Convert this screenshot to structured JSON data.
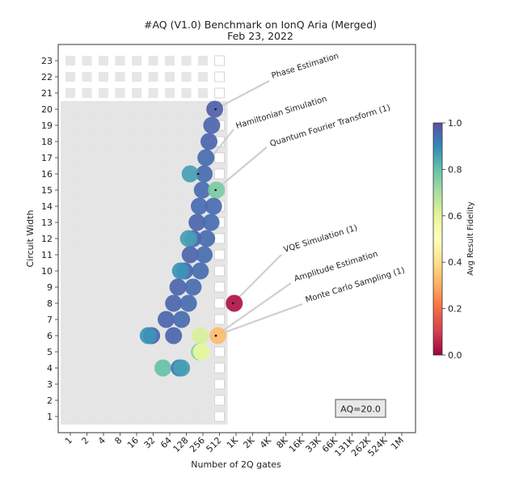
{
  "chart_data": {
    "type": "scatter",
    "title": "#AQ (V1.0) Benchmark on IonQ Aria (Merged)",
    "subtitle": "Feb 23, 2022",
    "xlabel": "Number of 2Q gates",
    "ylabel": "Circuit Width",
    "x_tick_labels": [
      "1",
      "2",
      "4",
      "8",
      "16",
      "32",
      "64",
      "128",
      "256",
      "512",
      "1K",
      "2K",
      "4K",
      "8K",
      "16K",
      "33K",
      "66K",
      "131K",
      "262K",
      "524K",
      "1M"
    ],
    "y_ticks": [
      1,
      2,
      3,
      4,
      5,
      6,
      7,
      8,
      9,
      10,
      11,
      12,
      13,
      14,
      15,
      16,
      17,
      18,
      19,
      20,
      21,
      22,
      23
    ],
    "x_scale": "log2",
    "aq_label": "AQ=20.0",
    "aq_value": 20,
    "colorbar": {
      "label": "Avg Result Fidelity",
      "ticks": [
        "0.0",
        "0.2",
        "0.4",
        "0.6",
        "0.8",
        "1.0"
      ],
      "min": 0.0,
      "max": 1.0,
      "colormap": "Spectral"
    },
    "colors": {
      "background_region": "#e5e5e5",
      "cell_fill": "#e6e6e6",
      "border": "#555555"
    },
    "annotations": [
      {
        "text": "Phase Estimation",
        "x": 435,
        "y": 20
      },
      {
        "text": "Hamiltonian Simulation",
        "x": 210,
        "y": 16
      },
      {
        "text": "Quantum Fourier Transform (1)",
        "x": 435,
        "y": 15
      },
      {
        "text": "VQE Simulation (1)",
        "x": 900,
        "y": 8
      },
      {
        "text": "Amplitude Estimation",
        "x": 440,
        "y": 6
      },
      {
        "text": "Monte Carlo Sampling (1)",
        "x": 440,
        "y": 6
      }
    ],
    "points": [
      {
        "x": 420,
        "y": 20,
        "fidelity": 0.97
      },
      {
        "x": 370,
        "y": 19,
        "fidelity": 0.96
      },
      {
        "x": 330,
        "y": 18,
        "fidelity": 0.96
      },
      {
        "x": 290,
        "y": 17,
        "fidelity": 0.95
      },
      {
        "x": 270,
        "y": 16,
        "fidelity": 0.95
      },
      {
        "x": 150,
        "y": 16,
        "fidelity": 0.86
      },
      {
        "x": 250,
        "y": 15,
        "fidelity": 0.95
      },
      {
        "x": 450,
        "y": 15,
        "fidelity": 0.77
      },
      {
        "x": 220,
        "y": 14,
        "fidelity": 0.95
      },
      {
        "x": 400,
        "y": 14,
        "fidelity": 0.95
      },
      {
        "x": 200,
        "y": 13,
        "fidelity": 0.96
      },
      {
        "x": 360,
        "y": 13,
        "fidelity": 0.95
      },
      {
        "x": 170,
        "y": 12,
        "fidelity": 0.96
      },
      {
        "x": 300,
        "y": 12,
        "fidelity": 0.95
      },
      {
        "x": 140,
        "y": 12,
        "fidelity": 0.86
      },
      {
        "x": 150,
        "y": 11,
        "fidelity": 0.96
      },
      {
        "x": 270,
        "y": 11,
        "fidelity": 0.95
      },
      {
        "x": 120,
        "y": 10,
        "fidelity": 0.96
      },
      {
        "x": 230,
        "y": 10,
        "fidelity": 0.95
      },
      {
        "x": 100,
        "y": 10,
        "fidelity": 0.88
      },
      {
        "x": 90,
        "y": 9,
        "fidelity": 0.96
      },
      {
        "x": 170,
        "y": 9,
        "fidelity": 0.95
      },
      {
        "x": 75,
        "y": 8,
        "fidelity": 0.96
      },
      {
        "x": 140,
        "y": 8,
        "fidelity": 0.95
      },
      {
        "x": 950,
        "y": 8,
        "fidelity": 0.03
      },
      {
        "x": 55,
        "y": 7,
        "fidelity": 0.96
      },
      {
        "x": 105,
        "y": 7,
        "fidelity": 0.95
      },
      {
        "x": 30,
        "y": 6,
        "fidelity": 0.96
      },
      {
        "x": 75,
        "y": 6,
        "fidelity": 0.96
      },
      {
        "x": 26,
        "y": 6,
        "fidelity": 0.88
      },
      {
        "x": 230,
        "y": 6,
        "fidelity": 0.62
      },
      {
        "x": 480,
        "y": 6,
        "fidelity": 0.33
      },
      {
        "x": 220,
        "y": 5,
        "fidelity": 0.75
      },
      {
        "x": 240,
        "y": 5,
        "fidelity": 0.58
      },
      {
        "x": 48,
        "y": 4,
        "fidelity": 0.8
      },
      {
        "x": 95,
        "y": 4,
        "fidelity": 0.93
      },
      {
        "x": 105,
        "y": 4,
        "fidelity": 0.86
      }
    ]
  }
}
